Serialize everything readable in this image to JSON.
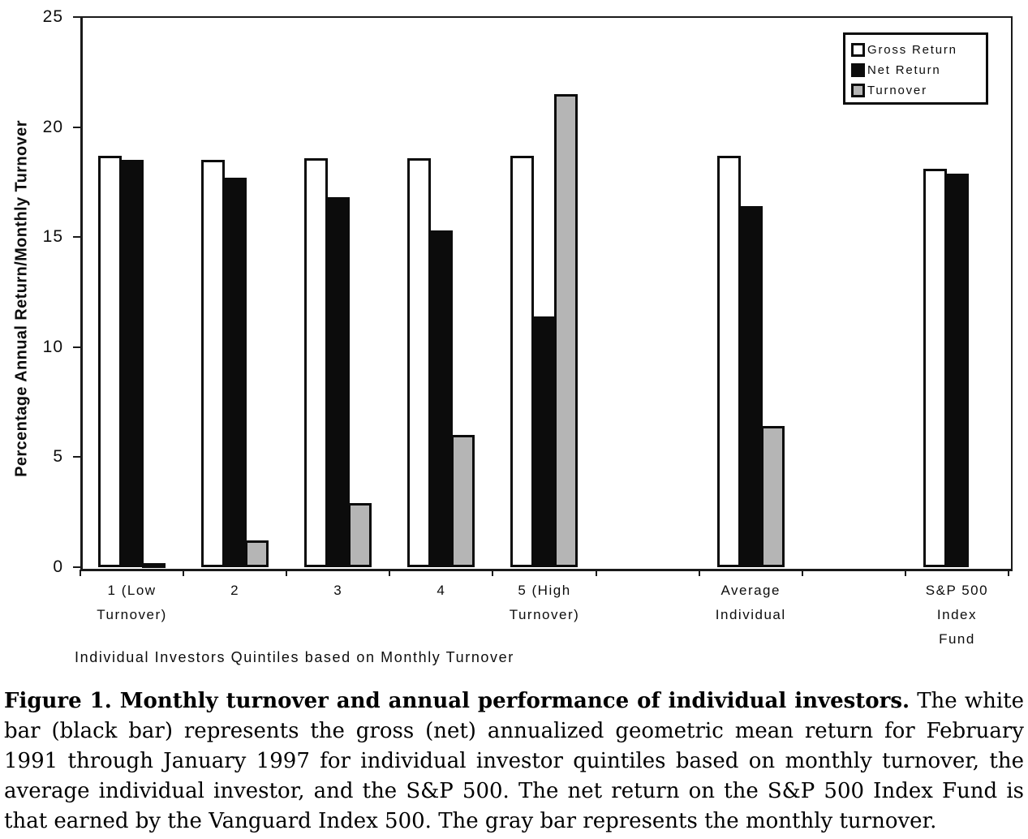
{
  "figure": {
    "caption_bold": "Figure 1. Monthly turnover and annual performance of individual investors.",
    "caption_rest": " The white bar (black bar) represents the gross (net) annualized geometric mean return for February 1991 through January 1997 for individual investor quintiles based on monthly turnover, the average individual investor, and the S&P 500. The net return on the S&P 500 Index Fund is that earned by the Vanguard Index 500. The gray bar represents the monthly turnover."
  },
  "legend": {
    "items": [
      "Gross Return",
      "Net Return",
      "Turnover"
    ]
  },
  "colors": {
    "gross_bar": "#ffffff",
    "net_bar": "#0c0c0c",
    "turnover_bar": "#b5b5b5",
    "ink": "#0d0d0d"
  },
  "chart_data": {
    "type": "bar",
    "title": "",
    "xlabel": "Individual Investors Quintiles based on Monthly Turnover",
    "ylabel": "Percentage Annual Return/Monthly Turnover",
    "ylim": [
      0,
      25
    ],
    "yticks": [
      0,
      5,
      10,
      15,
      20,
      25
    ],
    "grid": false,
    "legend_position": "top-right",
    "categories": [
      "1 (Low Turnover)",
      "2",
      "3",
      "4",
      "5 (High Turnover)",
      "Average Individual",
      "S&P 500 Index Fund"
    ],
    "category_label_lines": [
      [
        "1 (Low",
        "Turnover)"
      ],
      [
        "2"
      ],
      [
        "3"
      ],
      [
        "4"
      ],
      [
        "5 (High",
        "Turnover)"
      ],
      [
        "Average",
        "Individual"
      ],
      [
        "S&P 500",
        "Index",
        "Fund"
      ]
    ],
    "series": [
      {
        "name": "Gross Return",
        "color": "#ffffff",
        "values": [
          18.7,
          18.5,
          18.6,
          18.6,
          18.7,
          18.7,
          18.1
        ]
      },
      {
        "name": "Net Return",
        "color": "#0c0c0c",
        "values": [
          18.5,
          17.7,
          16.8,
          15.3,
          11.4,
          16.4,
          17.9
        ]
      },
      {
        "name": "Turnover",
        "color": "#b5b5b5",
        "values": [
          0.2,
          1.2,
          2.9,
          6.0,
          21.5,
          6.4,
          null
        ]
      }
    ]
  }
}
